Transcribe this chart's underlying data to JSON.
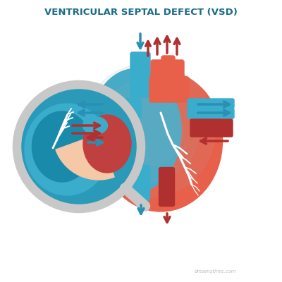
{
  "title": "VENTRICULAR SEPTAL DEFECT (VSD)",
  "title_color": "#1a6b8a",
  "title_fontsize": 9.5,
  "bg_color": "#ffffff",
  "heart_red": "#e8604a",
  "heart_red_light": "#f08878",
  "heart_blue": "#3aaccc",
  "heart_blue_dark": "#1a8aaa",
  "arrow_blue": "#2a8fb5",
  "arrow_red": "#b03030",
  "magnifier_border": "#c8c8c8",
  "mag_bg_blue": "#2a9ab8",
  "watermark_color": "#bbbbbb",
  "white": "#ffffff",
  "septum_color": "#f5c8a8",
  "inner_red": "#c04040",
  "inner_blue_dark": "#1a7a9a"
}
